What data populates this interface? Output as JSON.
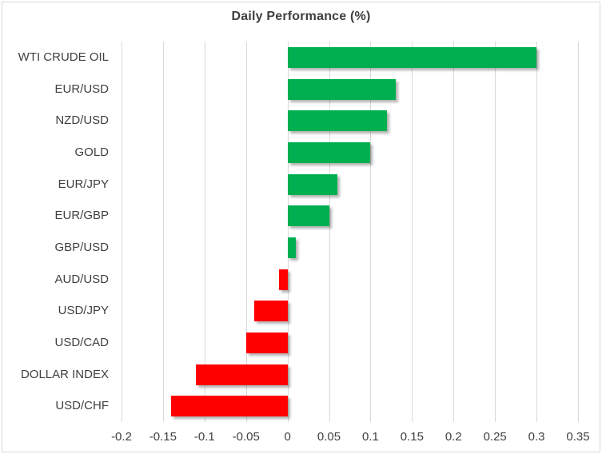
{
  "chart": {
    "title": "Daily Performance (%)"
  },
  "chart_data": {
    "type": "bar",
    "orientation": "horizontal",
    "title": "Daily Performance (%)",
    "xlabel": "",
    "ylabel": "",
    "categories": [
      "WTI CRUDE OIL",
      "EUR/USD",
      "NZD/USD",
      "GOLD",
      "EUR/JPY",
      "EUR/GBP",
      "GBP/USD",
      "AUD/USD",
      "USD/JPY",
      "USD/CAD",
      "DOLLAR INDEX",
      "USD/CHF"
    ],
    "values": [
      0.3,
      0.13,
      0.12,
      0.1,
      0.06,
      0.05,
      0.01,
      -0.01,
      -0.04,
      -0.05,
      -0.11,
      -0.14
    ],
    "xlim": [
      -0.2,
      0.35
    ],
    "xticks": [
      -0.2,
      -0.15,
      -0.1,
      -0.05,
      0,
      0.05,
      0.1,
      0.15,
      0.2,
      0.25,
      0.3,
      0.35
    ],
    "xtick_labels": [
      "-0.2",
      "-0.15",
      "-0.1",
      "-0.05",
      "0",
      "0.05",
      "0.1",
      "0.15",
      "0.2",
      "0.25",
      "0.3",
      "0.35"
    ],
    "grid": true,
    "legend": "none",
    "positive_color": "#00B050",
    "negative_color": "#FF0000",
    "gridline_color": "#D9D9D9",
    "text_color": "#404040",
    "title_color": "#3F3F3F",
    "background_color": "#FFFFFF"
  }
}
